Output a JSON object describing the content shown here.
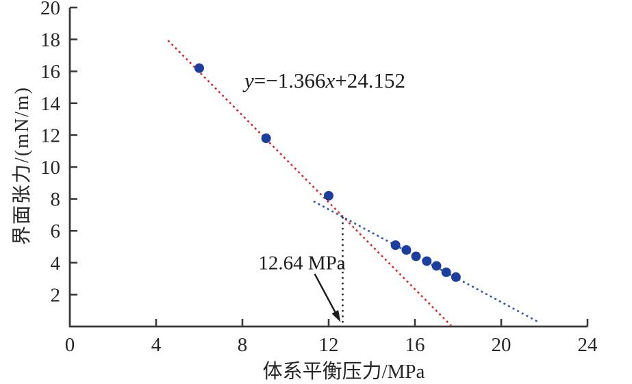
{
  "figure": {
    "background": "#ffffff",
    "axis_color": "#3a3a3a",
    "equation": {
      "lhs": "y",
      "body": "=−1.366",
      "var": "x",
      "tail": "+24.152"
    },
    "annotation": "12.64 MPa"
  },
  "chart_data": {
    "type": "scatter",
    "title": "",
    "xlabel": "体系平衡压力/MPa",
    "ylabel": "界面张力/(mN/m)",
    "xlim": [
      0,
      24
    ],
    "ylim": [
      0,
      20
    ],
    "xticks": [
      0,
      4,
      8,
      12,
      16,
      20,
      24
    ],
    "yticks": [
      2,
      4,
      6,
      8,
      10,
      12,
      14,
      16,
      18,
      20
    ],
    "grid": false,
    "legend": "none",
    "point_color": "#1c3f9f",
    "series": [
      {
        "name": "interfacial-tension-points-steep-trend",
        "color": "#1c3f9f",
        "marker": "circle",
        "points": [
          [
            6.0,
            16.2
          ],
          [
            9.1,
            11.8
          ],
          [
            12.0,
            8.2
          ]
        ]
      },
      {
        "name": "interfacial-tension-points-shallow-trend",
        "color": "#1c3f9f",
        "marker": "circle",
        "points": [
          [
            15.1,
            5.1
          ],
          [
            15.6,
            4.8
          ],
          [
            16.05,
            4.4
          ],
          [
            16.55,
            4.1
          ],
          [
            17.0,
            3.8
          ],
          [
            17.45,
            3.4
          ],
          [
            17.9,
            3.1
          ]
        ]
      }
    ],
    "lines": [
      {
        "name": "red-regression-line",
        "color": "#d62b2b",
        "style": "dashed",
        "equation": "y=−1.366x+24.152",
        "from": [
          4.55,
          17.94
        ],
        "to": [
          17.68,
          0.05
        ]
      },
      {
        "name": "blue-regression-line",
        "color": "#3156a8",
        "style": "dashed",
        "from": [
          11.3,
          7.85
        ],
        "to": [
          21.7,
          0.3
        ]
      }
    ],
    "annotations": [
      {
        "name": "mmp-vertical-guide",
        "style": "dotted",
        "color": "#1a1a1a",
        "from": [
          12.65,
          6.87
        ],
        "to": [
          12.65,
          0.05
        ]
      },
      {
        "name": "mmp-arrow",
        "color": "#1a1a1a",
        "from": [
          11.35,
          3.3
        ],
        "to": [
          12.55,
          0.28
        ]
      },
      {
        "name": "mmp-label",
        "text": "12.64 MPa",
        "x": 10.75,
        "y": 3.95
      }
    ]
  }
}
